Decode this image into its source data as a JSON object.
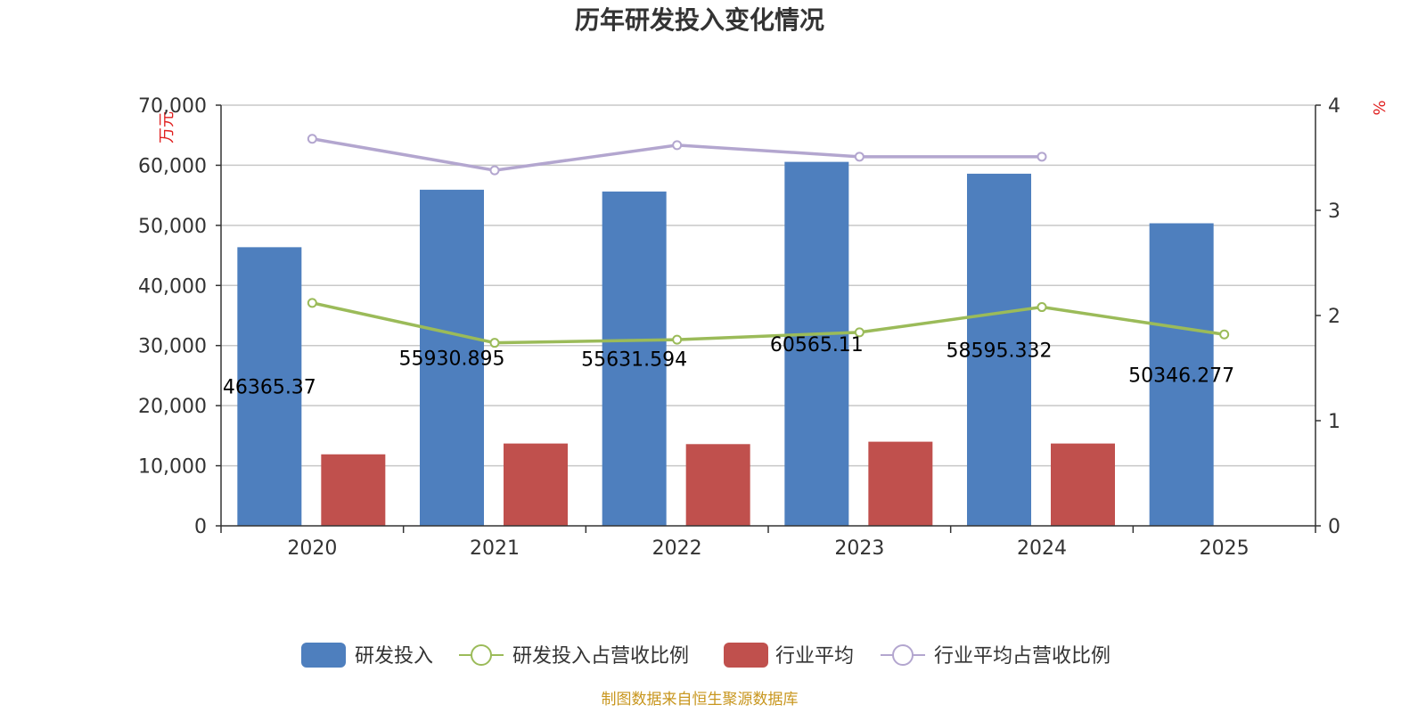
{
  "source_note": "制图数据来自恒生聚源数据库",
  "colors": {
    "rd": "#4e7fbe",
    "industry": "#c0504d",
    "rd_ratio": "#9bbb59",
    "industry_ratio": "#b3a6cf",
    "axis_text": "#333333",
    "unit_text": "#e02020",
    "source_text": "#c8961e",
    "grid": "#c8c8c8"
  },
  "chart_data": {
    "type": "bar",
    "title": "历年研发投入变化情况",
    "categories": [
      "2020",
      "2021",
      "2022",
      "2023",
      "2024",
      "2025"
    ],
    "left_axis": {
      "unit": "万元",
      "ylim": [
        0,
        70000
      ],
      "ticks": [
        "0",
        "10,000",
        "20,000",
        "30,000",
        "40,000",
        "50,000",
        "60,000",
        "70,000"
      ],
      "tick_values": [
        0,
        10000,
        20000,
        30000,
        40000,
        50000,
        60000,
        70000
      ]
    },
    "right_axis": {
      "unit": "%",
      "ylim": [
        0,
        4
      ],
      "ticks": [
        "0",
        "1",
        "2",
        "3",
        "4"
      ],
      "tick_values": [
        0,
        1,
        2,
        3,
        4
      ]
    },
    "grid": true,
    "legend_position": "bottom",
    "series": [
      {
        "name": "研发投入",
        "type": "bar",
        "axis": "left",
        "values": [
          46365.37,
          55930.895,
          55631.594,
          60565.11,
          58595.332,
          50346.277
        ],
        "labels": [
          "46365.37",
          "55930.895",
          "55631.594",
          "60565.11",
          "58595.332",
          "50346.277"
        ]
      },
      {
        "name": "研发投入占营收比例",
        "type": "line",
        "axis": "right",
        "values": [
          2.12,
          1.74,
          1.77,
          1.84,
          2.08,
          1.82
        ]
      },
      {
        "name": "行业平均",
        "type": "bar",
        "axis": "left",
        "values": [
          11900,
          13700,
          13600,
          14000,
          13700,
          null
        ]
      },
      {
        "name": "行业平均占营收比例",
        "type": "line",
        "axis": "right",
        "values": [
          3.68,
          3.38,
          3.62,
          3.51,
          3.51,
          null
        ]
      }
    ]
  }
}
